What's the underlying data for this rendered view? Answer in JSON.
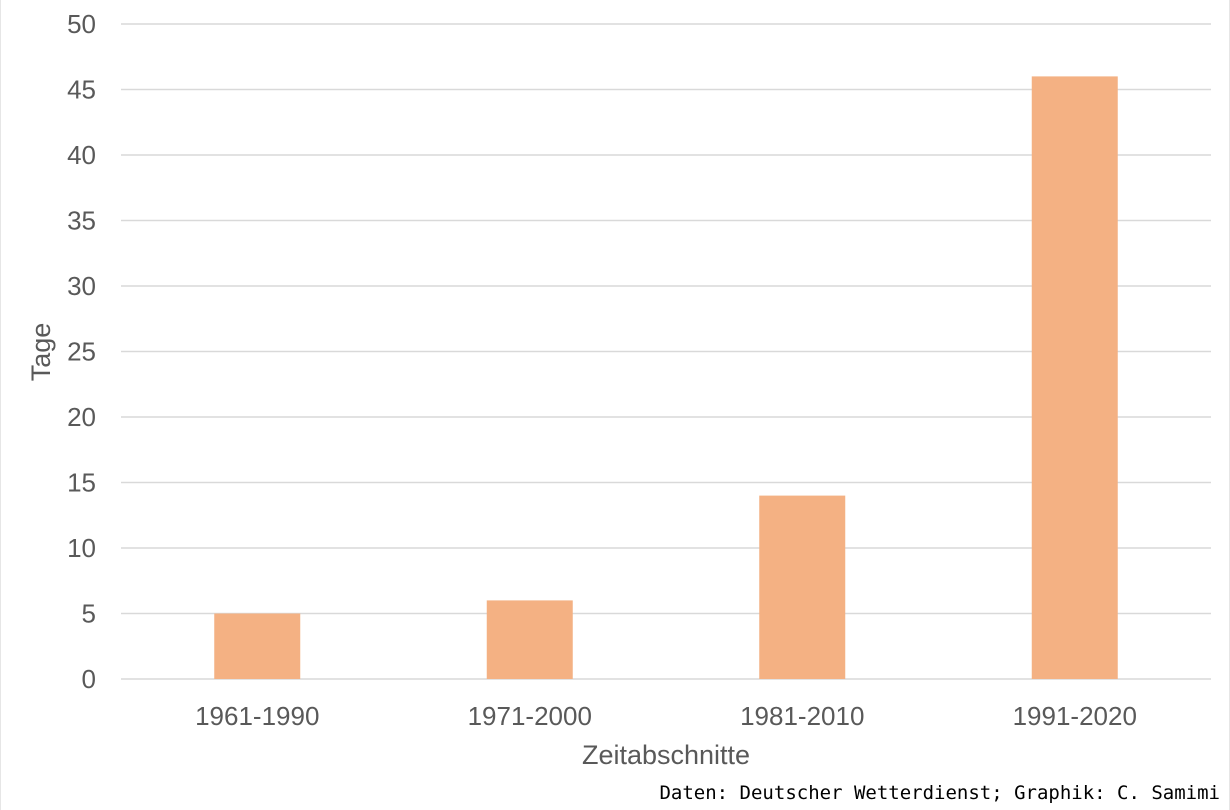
{
  "chart_data": {
    "type": "bar",
    "categories": [
      "1961-1990",
      "1971-2000",
      "1981-2010",
      "1991-2020"
    ],
    "values": [
      5,
      6,
      14,
      46
    ],
    "xlabel": "Zeitabschnitte",
    "ylabel": "Tage",
    "ylim": [
      0,
      50
    ],
    "yticks": [
      0,
      5,
      10,
      15,
      20,
      25,
      30,
      35,
      40,
      45,
      50
    ],
    "grid": true,
    "legend": false,
    "bar_color": "#f4b183",
    "grid_color": "#d9d9d9"
  },
  "source_note": "Daten: Deutscher Wetterdienst; Graphik: C. Samimi"
}
